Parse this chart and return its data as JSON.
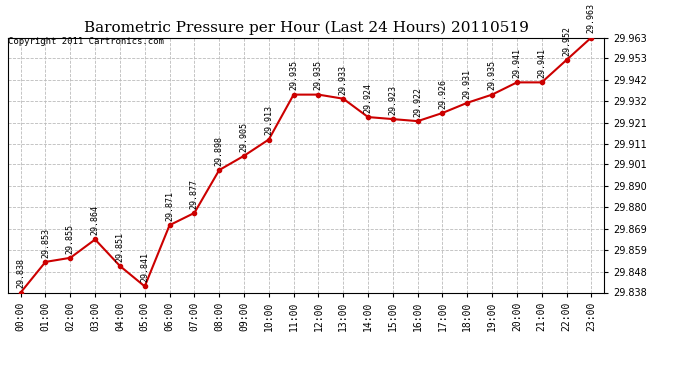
{
  "title": "Barometric Pressure per Hour (Last 24 Hours) 20110519",
  "copyright_text": "Copyright 2011 Cartronics.com",
  "hours": [
    "00:00",
    "01:00",
    "02:00",
    "03:00",
    "04:00",
    "05:00",
    "06:00",
    "07:00",
    "08:00",
    "09:00",
    "10:00",
    "11:00",
    "12:00",
    "13:00",
    "14:00",
    "15:00",
    "16:00",
    "17:00",
    "18:00",
    "19:00",
    "20:00",
    "21:00",
    "22:00",
    "23:00"
  ],
  "values": [
    29.838,
    29.853,
    29.855,
    29.864,
    29.851,
    29.841,
    29.871,
    29.877,
    29.898,
    29.905,
    29.913,
    29.935,
    29.935,
    29.933,
    29.924,
    29.923,
    29.922,
    29.926,
    29.931,
    29.935,
    29.941,
    29.941,
    29.952,
    29.963
  ],
  "ylim_min": 29.838,
  "ylim_max": 29.963,
  "yticks": [
    29.838,
    29.848,
    29.859,
    29.869,
    29.88,
    29.89,
    29.901,
    29.911,
    29.921,
    29.932,
    29.942,
    29.953,
    29.963
  ],
  "line_color": "#cc0000",
  "marker_color": "#cc0000",
  "bg_color": "#ffffff",
  "plot_bg_color": "#ffffff",
  "grid_color": "#bbbbbb",
  "title_fontsize": 11,
  "tick_fontsize": 7,
  "annotation_fontsize": 6,
  "copyright_fontsize": 6.5
}
